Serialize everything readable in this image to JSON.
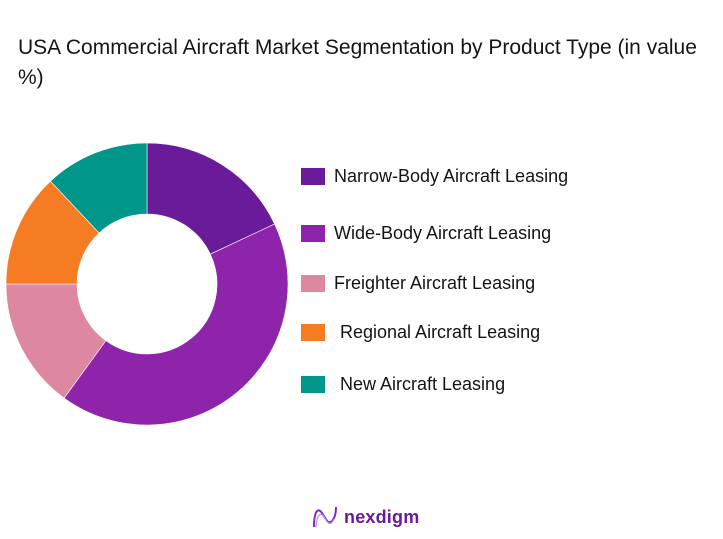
{
  "title": "USA Commercial Aircraft Market Segmentation by Product Type (in value %)",
  "legend": [
    {
      "label": "Narrow-Body Aircraft Leasing",
      "color": "#6a1b9a"
    },
    {
      "label": "Wide-Body Aircraft Leasing",
      "color": "#8e24aa"
    },
    {
      "label": "Freighter Aircraft Leasing",
      "color": "#de87a0"
    },
    {
      "label": "Regional Aircraft Leasing",
      "color": "#f57c22"
    },
    {
      "label": "New Aircraft Leasing",
      "color": "#00968a"
    }
  ],
  "logo": {
    "text": "nexdigm"
  },
  "chart_data": {
    "type": "pie",
    "subtype": "donut",
    "title": "USA Commercial Aircraft Market Segmentation by Product Type (in value %)",
    "categories": [
      "Narrow-Body Aircraft Leasing",
      "Wide-Body Aircraft Leasing",
      "Freighter Aircraft Leasing",
      "Regional Aircraft Leasing",
      "New Aircraft Leasing"
    ],
    "values": [
      18,
      42,
      15,
      13,
      12
    ],
    "colors": [
      "#6a1b9a",
      "#8e24aa",
      "#de87a0",
      "#f57c22",
      "#00968a"
    ],
    "start_angle": "12 o'clock, clockwise",
    "data_labels": false,
    "legend_position": "right"
  }
}
